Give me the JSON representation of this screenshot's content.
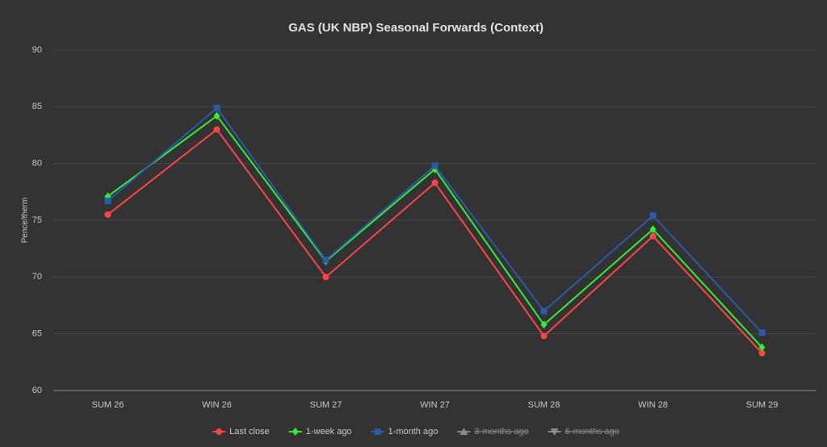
{
  "chart_data": {
    "type": "line",
    "title": "GAS (UK NBP) Seasonal Forwards (Context)",
    "y_label": "Pence/therm",
    "categories": [
      "SUM 26",
      "WIN 26",
      "SUM 27",
      "WIN 27",
      "SUM 28",
      "WIN 28",
      "SUM 29"
    ],
    "series": [
      {
        "name": "Last close",
        "color": "#ff4444",
        "marker": "circle",
        "visible": true,
        "values": [
          75.5,
          83.0,
          70.0,
          78.3,
          64.8,
          73.6,
          63.3
        ]
      },
      {
        "name": "1-week ago",
        "color": "#33ee33",
        "marker": "diamond",
        "visible": true,
        "values": [
          77.1,
          84.2,
          71.4,
          79.5,
          65.8,
          74.2,
          63.8
        ]
      },
      {
        "name": "1-month ago",
        "color": "#2a5aa8",
        "marker": "square",
        "visible": true,
        "values": [
          76.7,
          84.9,
          71.5,
          79.8,
          67.0,
          75.4,
          65.1
        ]
      },
      {
        "name": "3-months ago",
        "color": "#9a9a9a",
        "marker": "triangle",
        "visible": false,
        "values": [
          null,
          null,
          null,
          null,
          null,
          null,
          null
        ]
      },
      {
        "name": "6-months ago",
        "color": "#9a9a9a",
        "marker": "triangle-down",
        "visible": false,
        "values": [
          null,
          null,
          null,
          null,
          null,
          null,
          null
        ]
      }
    ],
    "ylim": [
      60,
      90
    ],
    "yticks": [
      60,
      65,
      70,
      75,
      80,
      85,
      90
    ],
    "grid": true,
    "legend": "bottom"
  }
}
